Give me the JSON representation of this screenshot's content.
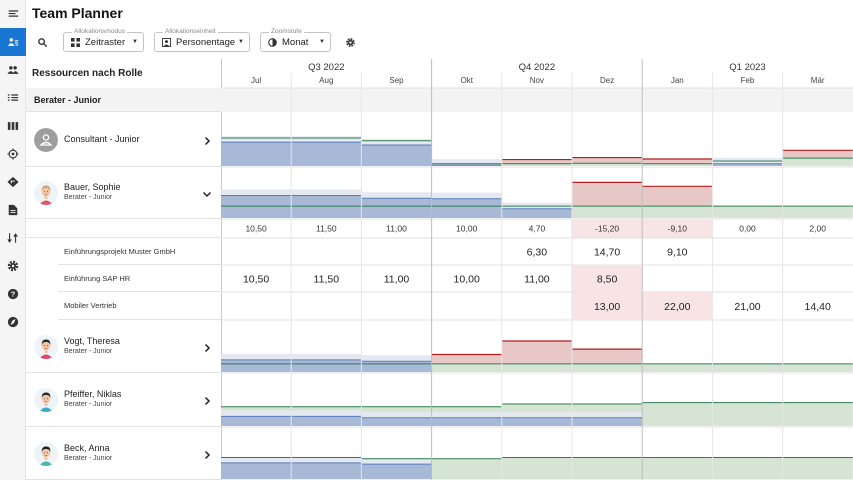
{
  "app": {
    "title": "Team Planner"
  },
  "rail": {
    "items": [
      {
        "name": "menu-icon",
        "active": false
      },
      {
        "name": "team-resources-icon",
        "active": true
      },
      {
        "name": "people-icon",
        "active": false
      },
      {
        "name": "list-icon",
        "active": false
      },
      {
        "name": "board-icon",
        "active": false
      },
      {
        "name": "target-icon",
        "active": false
      },
      {
        "name": "navigation-icon",
        "active": false
      },
      {
        "name": "document-icon",
        "active": false
      },
      {
        "name": "swap-icon",
        "active": false
      },
      {
        "name": "gear-icon",
        "active": false
      },
      {
        "name": "help-icon",
        "active": false
      },
      {
        "name": "explore-icon",
        "active": false
      }
    ]
  },
  "toolbar": {
    "mode": {
      "label": "Allokationsmodus",
      "value": "Zeitraster"
    },
    "unit": {
      "label": "Allokationseinheit",
      "value": "Personentage"
    },
    "zoom": {
      "label": "Zoomstufe",
      "value": "Monat"
    }
  },
  "resources": {
    "header": "Ressourcen nach Rolle",
    "group": "Berater - Junior"
  },
  "people": [
    {
      "name": "Consultant - Junior",
      "role": "",
      "placeholder": true,
      "expanded": false
    },
    {
      "name": "Bauer, Sophie",
      "role": "Berater - Junior",
      "expanded": true,
      "hair": "#c8a27a",
      "shirt": "#e0566a"
    },
    {
      "name": "Vogt, Theresa",
      "role": "Berater - Junior",
      "expanded": false,
      "hair": "#2b2b2b",
      "shirt": "#e04a6a"
    },
    {
      "name": "Pfeiffer, Niklas",
      "role": "Berater - Junior",
      "expanded": false,
      "hair": "#2b2b2b",
      "shirt": "#3aa9c9"
    },
    {
      "name": "Beck, Anna",
      "role": "Berater - Junior",
      "expanded": false,
      "hair": "#1e1e1e",
      "shirt": "#4bb5a5"
    }
  ],
  "timeline": {
    "quarters": [
      "Q3 2022",
      "Q4 2022",
      "Q1 2023"
    ],
    "months": [
      "Jul",
      "Aug",
      "Sep",
      "Okt",
      "Nov",
      "Dez",
      "Jan",
      "Feb",
      "Mär"
    ],
    "totals": [
      "10,50",
      "11,50",
      "11,00",
      "10,00",
      "4,70",
      "-15,20",
      "-9,10",
      "0,00",
      "2,00"
    ],
    "totals_neg": [
      false,
      false,
      false,
      false,
      false,
      true,
      true,
      false,
      false
    ],
    "projects": [
      {
        "name": "Einführungsprojekt Muster GmbH",
        "values": [
          "",
          "",
          "",
          "",
          "6,30",
          "14,70",
          "9,10",
          "",
          ""
        ],
        "over": [
          false,
          false,
          false,
          false,
          false,
          false,
          false,
          false,
          false
        ]
      },
      {
        "name": "Einführung SAP HR",
        "values": [
          "10,50",
          "11,50",
          "11,00",
          "10,00",
          "11,00",
          "8,50",
          "",
          "",
          ""
        ],
        "over": [
          false,
          false,
          false,
          false,
          false,
          true,
          false,
          false,
          false
        ]
      },
      {
        "name": "Mobiler Vertrieb",
        "values": [
          "",
          "",
          "",
          "",
          "",
          "13,00",
          "22,00",
          "21,00",
          "14,40"
        ],
        "over": [
          false,
          false,
          false,
          false,
          false,
          true,
          true,
          false,
          false
        ]
      }
    ]
  },
  "chart_data": {
    "type": "area",
    "title": "",
    "categories": [
      "Jul",
      "Aug",
      "Sep",
      "Okt",
      "Nov",
      "Dez",
      "Jan",
      "Feb",
      "Mär"
    ],
    "series": [
      {
        "name": "Consultant - Junior",
        "assigned": [
          0.85,
          0.85,
          0.75,
          0.03,
          0,
          0,
          0,
          0.08,
          0
        ],
        "capacity": [
          1,
          1,
          0.9,
          0.08,
          0.08,
          0.1,
          0.08,
          0.18,
          0.28
        ],
        "over": [
          0,
          0,
          0,
          0,
          0.15,
          0.2,
          0.17,
          0,
          0.28
        ]
      },
      {
        "name": "Bauer, Sophie",
        "assigned": [
          0.85,
          0.85,
          0.75,
          0.73,
          0.35,
          0,
          0,
          0,
          0
        ],
        "capacity": [
          0.45,
          0.45,
          0.45,
          0.45,
          0.45,
          0.45,
          0.45,
          0.45,
          0.45
        ],
        "over": [
          0,
          0,
          0,
          0,
          0,
          0.9,
          0.75,
          0,
          0
        ]
      },
      {
        "name": "Vogt, Theresa",
        "assigned": [
          0.45,
          0.45,
          0.4,
          0,
          0,
          0,
          0,
          0,
          0
        ],
        "capacity": [
          0.3,
          0.3,
          0.3,
          0.3,
          0.3,
          0.3,
          0.3,
          0.3,
          0.3
        ],
        "over": [
          0,
          0,
          0,
          0.35,
          0.85,
          0.55,
          0,
          0,
          0
        ]
      },
      {
        "name": "Pfeiffer, Niklas",
        "assigned": [
          0.35,
          0.35,
          0.3,
          0.3,
          0.3,
          0.3,
          0,
          0,
          0
        ],
        "capacity": [
          0.7,
          0.7,
          0.7,
          0.7,
          0.8,
          0.8,
          0.85,
          0.85,
          0.85
        ],
        "over": [
          0,
          0,
          0,
          0,
          0,
          0,
          0,
          0,
          0
        ]
      },
      {
        "name": "Beck, Anna",
        "assigned": [
          0.6,
          0.6,
          0.55,
          0,
          0,
          0,
          0,
          0,
          0
        ],
        "capacity": [
          0.8,
          0.8,
          0.75,
          0.75,
          0.8,
          0.8,
          0.8,
          0.8,
          0.8
        ],
        "over": [
          0,
          0,
          0,
          0,
          0,
          0,
          0,
          0,
          0
        ]
      }
    ]
  },
  "colors": {
    "blue": "#a7b9d6",
    "blue_line": "#5a7db8",
    "green": "#d6e5d3",
    "green_line": "#2e7d4f",
    "red": "#e8c7c7",
    "red_line": "#b71c1c",
    "active": "#1976d2",
    "neg_bg": "#f8e4e4"
  }
}
